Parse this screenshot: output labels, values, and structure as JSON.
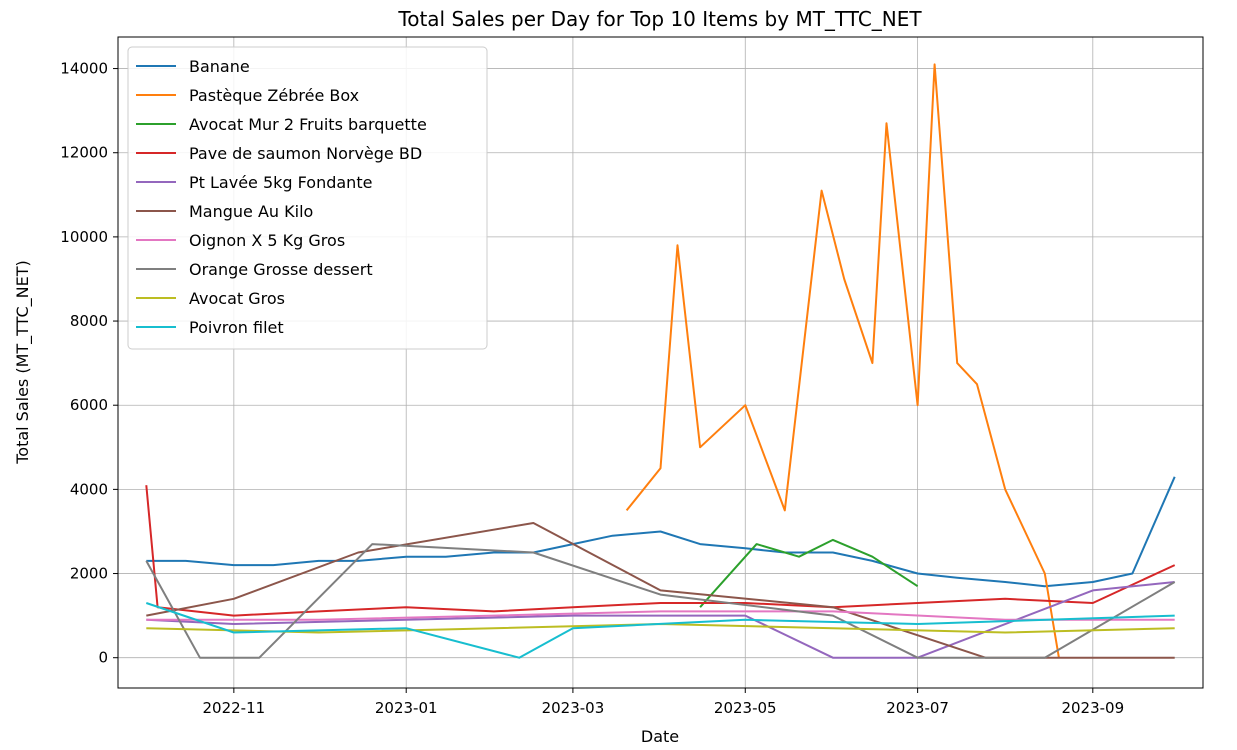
{
  "chart_data": {
    "type": "line",
    "title": "Total Sales per Day for Top 10 Items by MT_TTC_NET",
    "xlabel": "Date",
    "ylabel": "Total Sales (MT_TTC_NET)",
    "x_range": [
      "2022-10-01",
      "2023-09-30"
    ],
    "ylim": [
      -720,
      14750
    ],
    "x_ticks": [
      "2022-11",
      "2023-01",
      "2023-03",
      "2023-05",
      "2023-07",
      "2023-09"
    ],
    "x_tick_dates": [
      "2022-11-01",
      "2023-01-01",
      "2023-03-01",
      "2023-05-01",
      "2023-07-01",
      "2023-09-01"
    ],
    "y_ticks": [
      0,
      2000,
      4000,
      6000,
      8000,
      10000,
      12000,
      14000
    ],
    "grid": true,
    "legend_position": "upper-left",
    "series": [
      {
        "name": "Banane",
        "color": "#1f77b4",
        "x": [
          "2022-10-01",
          "2022-10-15",
          "2022-11-01",
          "2022-11-15",
          "2022-12-01",
          "2022-12-15",
          "2023-01-01",
          "2023-01-15",
          "2023-02-01",
          "2023-02-15",
          "2023-03-01",
          "2023-03-15",
          "2023-04-01",
          "2023-04-15",
          "2023-05-01",
          "2023-05-15",
          "2023-06-01",
          "2023-06-15",
          "2023-07-01",
          "2023-07-15",
          "2023-08-01",
          "2023-08-15",
          "2023-09-01",
          "2023-09-15",
          "2023-09-30"
        ],
        "values": [
          2300,
          2300,
          2200,
          2200,
          2300,
          2300,
          2400,
          2400,
          2500,
          2500,
          2700,
          2900,
          3000,
          2700,
          2600,
          2500,
          2500,
          2300,
          2000,
          1900,
          1800,
          1700,
          1800,
          2000,
          4300
        ]
      },
      {
        "name": "Pastèque Zébrée Box",
        "color": "#ff7f0e",
        "x": [
          "2023-03-20",
          "2023-04-01",
          "2023-04-07",
          "2023-04-15",
          "2023-05-01",
          "2023-05-15",
          "2023-05-28",
          "2023-06-05",
          "2023-06-15",
          "2023-06-20",
          "2023-07-01",
          "2023-07-07",
          "2023-07-15",
          "2023-07-22",
          "2023-08-01",
          "2023-08-15",
          "2023-08-20"
        ],
        "values": [
          3500,
          4500,
          9800,
          5000,
          6000,
          3500,
          11100,
          9000,
          7000,
          12700,
          6000,
          14100,
          7000,
          6500,
          4000,
          2000,
          0
        ]
      },
      {
        "name": "Avocat Mur 2 Fruits barquette",
        "color": "#2ca02c",
        "x": [
          "2023-04-15",
          "2023-05-05",
          "2023-05-20",
          "2023-06-01",
          "2023-06-15",
          "2023-07-01"
        ],
        "values": [
          1200,
          2700,
          2400,
          2800,
          2400,
          1700
        ]
      },
      {
        "name": "Pave de saumon Norvège BD",
        "color": "#d62728",
        "x": [
          "2022-10-01",
          "2022-10-05",
          "2022-11-01",
          "2022-12-01",
          "2023-01-01",
          "2023-02-01",
          "2023-03-01",
          "2023-04-01",
          "2023-05-01",
          "2023-06-01",
          "2023-07-01",
          "2023-08-01",
          "2023-09-01",
          "2023-09-30"
        ],
        "values": [
          4100,
          1200,
          1000,
          1100,
          1200,
          1100,
          1200,
          1300,
          1300,
          1200,
          1300,
          1400,
          1300,
          2200
        ]
      },
      {
        "name": "Pt Lavée 5kg Fondante",
        "color": "#9467bd",
        "x": [
          "2022-10-01",
          "2022-11-01",
          "2023-01-01",
          "2023-03-01",
          "2023-05-01",
          "2023-06-01",
          "2023-07-01",
          "2023-09-01",
          "2023-09-30"
        ],
        "values": [
          900,
          800,
          900,
          1000,
          1000,
          0,
          0,
          1600,
          1800
        ]
      },
      {
        "name": "Mangue Au Kilo",
        "color": "#8c564b",
        "x": [
          "2022-10-01",
          "2022-11-01",
          "2022-12-15",
          "2023-02-15",
          "2023-04-01",
          "2023-06-01",
          "2023-07-25",
          "2023-09-30"
        ],
        "values": [
          1000,
          1400,
          2500,
          3200,
          1600,
          1200,
          0,
          0
        ]
      },
      {
        "name": "Oignon X 5 Kg Gros",
        "color": "#e377c2",
        "x": [
          "2022-10-01",
          "2022-12-01",
          "2023-02-01",
          "2023-04-01",
          "2023-06-01",
          "2023-08-01",
          "2023-09-30"
        ],
        "values": [
          900,
          900,
          1000,
          1100,
          1100,
          900,
          900
        ]
      },
      {
        "name": "Orange Grosse dessert",
        "color": "#7f7f7f",
        "x": [
          "2022-10-01",
          "2022-10-20",
          "2022-11-10",
          "2022-12-20",
          "2023-02-15",
          "2023-04-01",
          "2023-06-01",
          "2023-07-01",
          "2023-08-15",
          "2023-09-30"
        ],
        "values": [
          2300,
          0,
          0,
          2700,
          2500,
          1500,
          1000,
          0,
          0,
          1800
        ]
      },
      {
        "name": "Avocat Gros",
        "color": "#bcbd22",
        "x": [
          "2022-10-01",
          "2022-12-01",
          "2023-02-01",
          "2023-04-01",
          "2023-06-01",
          "2023-08-01",
          "2023-09-30"
        ],
        "values": [
          700,
          600,
          700,
          800,
          700,
          600,
          700
        ]
      },
      {
        "name": "Poivron filet",
        "color": "#17becf",
        "x": [
          "2022-10-01",
          "2022-11-01",
          "2023-01-01",
          "2023-02-10",
          "2023-03-01",
          "2023-05-01",
          "2023-07-01",
          "2023-09-30"
        ],
        "values": [
          1300,
          600,
          700,
          0,
          700,
          900,
          800,
          1000
        ]
      }
    ]
  }
}
